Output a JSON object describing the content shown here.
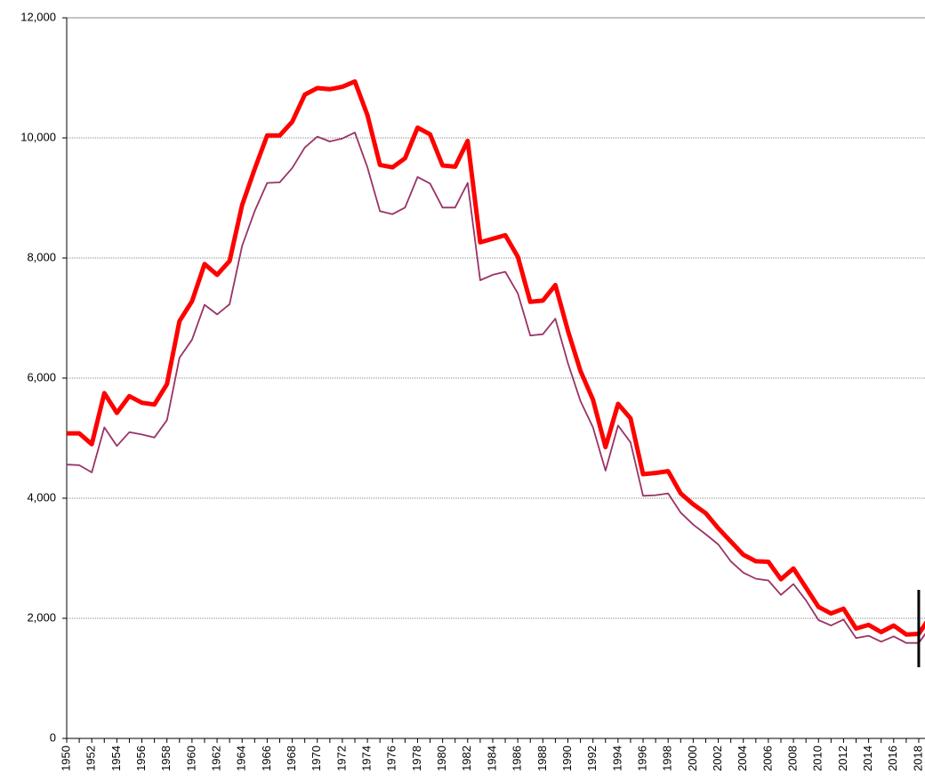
{
  "chart_data": {
    "type": "line",
    "x": [
      1950,
      1951,
      1952,
      1953,
      1954,
      1955,
      1956,
      1957,
      1958,
      1959,
      1960,
      1961,
      1962,
      1963,
      1964,
      1965,
      1966,
      1967,
      1968,
      1969,
      1970,
      1971,
      1972,
      1973,
      1974,
      1975,
      1976,
      1977,
      1978,
      1979,
      1980,
      1981,
      1982,
      1983,
      1984,
      1985,
      1986,
      1987,
      1988,
      1989,
      1990,
      1991,
      1992,
      1993,
      1994,
      1995,
      1996,
      1997,
      1998,
      1999,
      2000,
      2001,
      2002,
      2003,
      2004,
      2005,
      2006,
      2007,
      2008,
      2009,
      2010,
      2011,
      2012,
      2013,
      2014,
      2015,
      2016,
      2017,
      2018,
      2019
    ],
    "series": [
      {
        "color": "#993366",
        "width": 1.8,
        "values": [
          4560,
          4550,
          4430,
          5180,
          4870,
          5100,
          5060,
          5010,
          5300,
          6340,
          6640,
          7220,
          7060,
          7230,
          8200,
          8780,
          9250,
          9260,
          9500,
          9840,
          10020,
          9940,
          9990,
          10090,
          9510,
          8780,
          8730,
          8840,
          9350,
          9240,
          8840,
          8840,
          9250,
          7630,
          7720,
          7770,
          7410,
          6710,
          6730,
          6990,
          6250,
          5620,
          5180,
          4460,
          5210,
          4930,
          4040,
          4050,
          4080,
          3760,
          3560,
          3400,
          3230,
          2950,
          2760,
          2660,
          2630,
          2390,
          2570,
          2300,
          1970,
          1880,
          1980,
          1670,
          1710,
          1610,
          1700,
          1590,
          1590,
          1880
        ]
      },
      {
        "color": "#ff0000",
        "width": 5,
        "values": [
          5080,
          5080,
          4900,
          5750,
          5420,
          5700,
          5590,
          5560,
          5900,
          6950,
          7280,
          7900,
          7720,
          7950,
          8880,
          9480,
          10040,
          10040,
          10270,
          10720,
          10830,
          10810,
          10850,
          10940,
          10380,
          9550,
          9510,
          9660,
          10170,
          10060,
          9540,
          9520,
          9950,
          8260,
          8320,
          8380,
          8020,
          7270,
          7290,
          7550,
          6790,
          6120,
          5640,
          4850,
          5570,
          5330,
          4400,
          4420,
          4450,
          4080,
          3900,
          3750,
          3500,
          3280,
          3060,
          2950,
          2940,
          2650,
          2830,
          2510,
          2190,
          2080,
          2160,
          1830,
          1890,
          1770,
          1880,
          1730,
          1740,
          2050
        ]
      }
    ],
    "xlim": [
      1950,
      2018.5
    ],
    "xticks": [
      1950,
      1952,
      1954,
      1956,
      1958,
      1960,
      1962,
      1964,
      1966,
      1968,
      1970,
      1972,
      1974,
      1976,
      1978,
      1980,
      1982,
      1984,
      1986,
      1988,
      1990,
      1992,
      1994,
      1996,
      1998,
      2000,
      2002,
      2004,
      2006,
      2008,
      2010,
      2012,
      2014,
      2016,
      2018
    ],
    "ylim": [
      0,
      12000
    ],
    "yticks": [
      0,
      {
        "value": 2000,
        "label": "2,000"
      },
      {
        "value": 4000,
        "label": "4,000"
      },
      {
        "value": 6000,
        "label": "6,000"
      },
      {
        "value": 8000,
        "label": "8,000"
      },
      {
        "value": 10000,
        "label": "10,000"
      },
      {
        "value": 12000,
        "label": "12,000"
      }
    ],
    "grid": true
  }
}
